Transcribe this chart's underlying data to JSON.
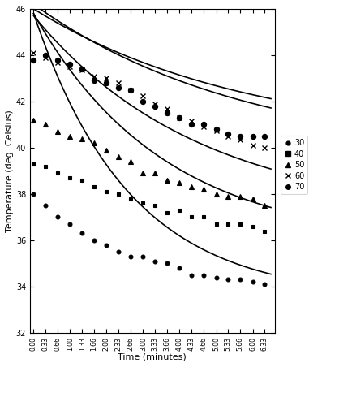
{
  "title": "",
  "xlabel": "Time (minutes)",
  "ylabel": "Temperature (deg. Celsius)",
  "xlim": [
    -0.1,
    6.6
  ],
  "ylim": [
    32,
    46
  ],
  "yticks": [
    32,
    34,
    36,
    38,
    40,
    42,
    44,
    46
  ],
  "xtick_vals": [
    0.0,
    0.33,
    0.66,
    1.0,
    1.33,
    1.66,
    2.0,
    2.33,
    2.66,
    3.0,
    3.33,
    3.66,
    4.0,
    4.33,
    4.66,
    5.0,
    5.33,
    5.66,
    6.0,
    6.33
  ],
  "xtick_labels": [
    "0.00",
    "0.33",
    "0.66",
    "1.00",
    "1.33",
    "1.66",
    "2.00",
    "2.33",
    "2.66",
    "3.00",
    "3.33",
    "3.66",
    "4.00",
    "4.33",
    "4.66",
    "5.00",
    "5.33",
    "5.66",
    "6.00",
    "6.33"
  ],
  "series": [
    {
      "label": "30",
      "marker": "o",
      "filled": true,
      "markersize": 3.5,
      "scatter_x": [
        0.0,
        0.33,
        0.66,
        1.0,
        1.33,
        1.66,
        2.0,
        2.33,
        2.66,
        3.0,
        3.33,
        3.66,
        4.0,
        4.33,
        4.66,
        5.0,
        5.33,
        5.66,
        6.0,
        6.33
      ],
      "scatter_y": [
        38.0,
        37.5,
        37.0,
        36.7,
        36.3,
        36.0,
        35.8,
        35.5,
        35.3,
        35.3,
        35.1,
        35.0,
        34.8,
        34.5,
        34.5,
        34.4,
        34.3,
        34.3,
        34.2,
        34.1
      ],
      "curve_y0": 45.8,
      "curve_c": 33.5,
      "curve_k": 0.38
    },
    {
      "label": "40",
      "marker": "s",
      "filled": true,
      "markersize": 3.5,
      "scatter_x": [
        0.0,
        0.33,
        0.66,
        1.0,
        1.33,
        1.66,
        2.0,
        2.33,
        2.66,
        3.0,
        3.33,
        3.66,
        4.0,
        4.33,
        4.66,
        5.0,
        5.33,
        5.66,
        6.0,
        6.33
      ],
      "scatter_y": [
        39.3,
        39.2,
        38.9,
        38.7,
        38.6,
        38.3,
        38.1,
        38.0,
        37.8,
        37.6,
        37.5,
        37.2,
        37.3,
        37.0,
        37.0,
        36.7,
        36.7,
        36.7,
        36.6,
        36.4
      ],
      "curve_y0": 45.8,
      "curve_c": 35.8,
      "curve_k": 0.28
    },
    {
      "label": "50",
      "marker": "^",
      "filled": true,
      "markersize": 4.0,
      "scatter_x": [
        0.0,
        0.33,
        0.66,
        1.0,
        1.33,
        1.66,
        2.0,
        2.33,
        2.66,
        3.0,
        3.33,
        3.66,
        4.0,
        4.33,
        4.66,
        5.0,
        5.33,
        5.66,
        6.0,
        6.33
      ],
      "scatter_y": [
        41.2,
        41.0,
        40.7,
        40.5,
        40.4,
        40.2,
        39.9,
        39.6,
        39.4,
        38.9,
        38.9,
        38.6,
        38.5,
        38.3,
        38.2,
        38.0,
        37.9,
        37.9,
        37.8,
        37.5
      ],
      "curve_y0": 45.7,
      "curve_c": 37.0,
      "curve_k": 0.22
    },
    {
      "label": "60",
      "marker": "x",
      "filled": false,
      "markersize": 5.0,
      "scatter_x": [
        0.0,
        0.33,
        0.66,
        1.0,
        1.33,
        1.66,
        2.0,
        2.33,
        2.66,
        3.0,
        3.33,
        3.66,
        4.0,
        4.33,
        4.66,
        5.0,
        5.33,
        5.66,
        6.0,
        6.33
      ],
      "scatter_y": [
        44.1,
        43.9,
        43.7,
        43.5,
        43.35,
        43.1,
        43.0,
        42.8,
        42.5,
        42.25,
        41.9,
        41.7,
        41.3,
        41.15,
        40.9,
        40.75,
        40.5,
        40.35,
        40.1,
        40.0
      ],
      "curve_y0": 46.2,
      "curve_c": 39.5,
      "curve_k": 0.17
    },
    {
      "label": "70",
      "marker": "o",
      "filled": true,
      "markersize": 4.5,
      "scatter_x": [
        0.0,
        0.33,
        0.66,
        1.0,
        1.33,
        1.66,
        2.0,
        2.33,
        2.66,
        3.0,
        3.33,
        3.66,
        4.0,
        4.33,
        4.66,
        5.0,
        5.33,
        5.66,
        6.0,
        6.33
      ],
      "scatter_y": [
        43.8,
        44.0,
        43.8,
        43.6,
        43.4,
        42.9,
        42.8,
        42.6,
        42.5,
        42.0,
        41.8,
        41.5,
        41.3,
        41.0,
        41.0,
        40.8,
        40.6,
        40.5,
        40.5,
        40.5
      ],
      "curve_y0": 46.0,
      "curve_c": 40.2,
      "curve_k": 0.17
    }
  ],
  "background_color": "#ffffff",
  "legend_markers": [
    "o",
    "s",
    "^",
    "x",
    "o"
  ],
  "legend_labels": [
    "30",
    "40",
    "50",
    "60",
    "70"
  ]
}
